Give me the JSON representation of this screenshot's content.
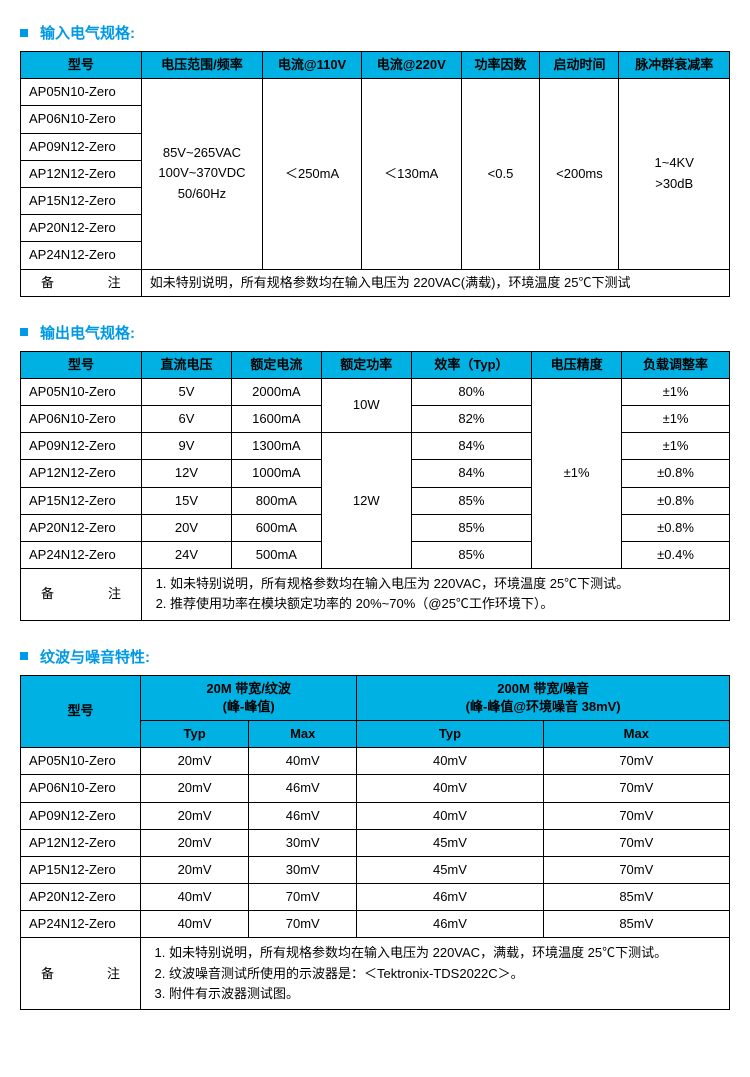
{
  "accent_color": "#0099e5",
  "header_bg": "#00b2e3",
  "section1": {
    "title": "输入电气规格:",
    "headers": [
      "型号",
      "电压范围/频率",
      "电流@110V",
      "电流@220V",
      "功率因数",
      "启动时间",
      "脉冲群衰减率"
    ],
    "models": [
      "AP05N10-Zero",
      "AP06N10-Zero",
      "AP09N12-Zero",
      "AP12N12-Zero",
      "AP15N12-Zero",
      "AP20N12-Zero",
      "AP24N12-Zero"
    ],
    "voltage_range": "85V~265VAC\n100V~370VDC\n50/60Hz",
    "current_110v": "＜250mA",
    "current_220v": "＜130mA",
    "power_factor": "<0.5",
    "startup_time": "<200ms",
    "pulse": "1~4KV\n>30dB",
    "note_label": "备注",
    "note_text": "如未特别说明，所有规格参数均在输入电压为 220VAC(满载)，环境温度 25℃下测试"
  },
  "section2": {
    "title": "输出电气规格:",
    "headers": [
      "型号",
      "直流电压",
      "额定电流",
      "额定功率",
      "效率（Typ）",
      "电压精度",
      "负载调整率"
    ],
    "rows": [
      {
        "model": "AP05N10-Zero",
        "v": "5V",
        "i": "2000mA",
        "eff": "80%",
        "load": "±1%"
      },
      {
        "model": "AP06N10-Zero",
        "v": "6V",
        "i": "1600mA",
        "eff": "82%",
        "load": "±1%"
      },
      {
        "model": "AP09N12-Zero",
        "v": "9V",
        "i": "1300mA",
        "eff": "84%",
        "load": "±1%"
      },
      {
        "model": "AP12N12-Zero",
        "v": "12V",
        "i": "1000mA",
        "eff": "84%",
        "load": "±0.8%"
      },
      {
        "model": "AP15N12-Zero",
        "v": "15V",
        "i": "800mA",
        "eff": "85%",
        "load": "±0.8%"
      },
      {
        "model": "AP20N12-Zero",
        "v": "20V",
        "i": "600mA",
        "eff": "85%",
        "load": "±0.8%"
      },
      {
        "model": "AP24N12-Zero",
        "v": "24V",
        "i": "500mA",
        "eff": "85%",
        "load": "±0.4%"
      }
    ],
    "power_10w": "10W",
    "power_12w": "12W",
    "precision": "±1%",
    "note_label": "备注",
    "notes": [
      "如未特别说明，所有规格参数均在输入电压为 220VAC，环境温度 25℃下测试。",
      "推荐使用功率在模块额定功率的 20%~70%（@25℃工作环境下）。"
    ]
  },
  "section3": {
    "title": "纹波与噪音特性:",
    "h_model": "型号",
    "h_20m_1": "20M 带宽/纹波",
    "h_20m_2": "(峰-峰值)",
    "h_200m_1": "200M 带宽/噪音",
    "h_200m_2": "(峰-峰值@环境噪音 38mV)",
    "typ": "Typ",
    "max": "Max",
    "rows": [
      {
        "model": "AP05N10-Zero",
        "t1": "20mV",
        "m1": "40mV",
        "t2": "40mV",
        "m2": "70mV"
      },
      {
        "model": "AP06N10-Zero",
        "t1": "20mV",
        "m1": "46mV",
        "t2": "40mV",
        "m2": "70mV"
      },
      {
        "model": "AP09N12-Zero",
        "t1": "20mV",
        "m1": "46mV",
        "t2": "40mV",
        "m2": "70mV"
      },
      {
        "model": "AP12N12-Zero",
        "t1": "20mV",
        "m1": "30mV",
        "t2": "45mV",
        "m2": "70mV"
      },
      {
        "model": "AP15N12-Zero",
        "t1": "20mV",
        "m1": "30mV",
        "t2": "45mV",
        "m2": "70mV"
      },
      {
        "model": "AP20N12-Zero",
        "t1": "40mV",
        "m1": "70mV",
        "t2": "46mV",
        "m2": "85mV"
      },
      {
        "model": "AP24N12-Zero",
        "t1": "40mV",
        "m1": "70mV",
        "t2": "46mV",
        "m2": "85mV"
      }
    ],
    "note_label": "备注",
    "notes": [
      "如未特别说明，所有规格参数均在输入电压为 220VAC，满载，环境温度 25℃下测试。",
      "纹波噪音测试所使用的示波器是：＜Tektronix-TDS2022C＞。",
      "附件有示波器测试图。"
    ]
  }
}
